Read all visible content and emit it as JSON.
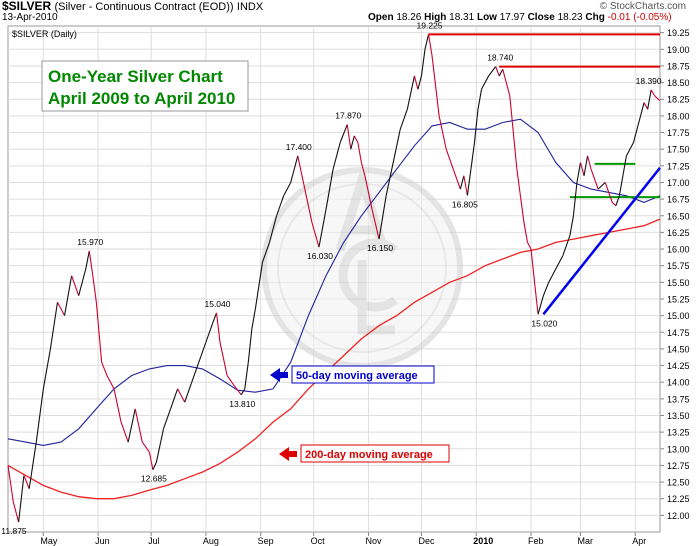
{
  "header": {
    "symbol": "$SILVER",
    "description": "(Silver - Continuous Contract (EOD))",
    "exchange": "INDX",
    "date": "13-Apr-2010",
    "watermark": "© StockCharts.com",
    "ohlc": {
      "open_label": "Open",
      "open": "18.26",
      "high_label": "High",
      "high": "18.31",
      "low_label": "Low",
      "low": "17.97",
      "close_label": "Close",
      "close": "18.23",
      "chg_label": "Chg",
      "chg": "-0.01 (-0.05%)"
    }
  },
  "chart_data": {
    "type": "line",
    "ticker_label": "$SILVER (Daily)",
    "title": "One-Year Silver Chart",
    "subtitle": "April 2009 to April 2010",
    "ylim": [
      11.75,
      19.35
    ],
    "yticks": [
      12.0,
      12.25,
      12.5,
      12.75,
      13.0,
      13.25,
      13.5,
      13.75,
      14.0,
      14.25,
      14.5,
      14.75,
      15.0,
      15.25,
      15.5,
      15.75,
      16.0,
      16.25,
      16.5,
      16.75,
      17.0,
      17.25,
      17.5,
      17.75,
      18.0,
      18.25,
      18.5,
      18.75,
      19.0,
      19.25
    ],
    "ytick_labels": [
      "12.00",
      "12.25",
      "12.50",
      "12.75",
      "13.00",
      "13.25",
      "13.50",
      "13.75",
      "14.00",
      "14.25",
      "14.50",
      "14.75",
      "15.00",
      "15.25",
      "15.50",
      "15.75",
      "16.00",
      "16.25",
      "16.50",
      "16.75",
      "17.00",
      "17.25",
      "17.50",
      "17.75",
      "18.00",
      "18.25",
      "18.50",
      "18.75",
      "19.00",
      "19.25"
    ],
    "xlim": [
      0,
      369
    ],
    "month_ticks": [
      {
        "label": "May",
        "day": 20
      },
      {
        "label": "Jun",
        "day": 51
      },
      {
        "label": "Jul",
        "day": 81
      },
      {
        "label": "Aug",
        "day": 112
      },
      {
        "label": "Sep",
        "day": 143
      },
      {
        "label": "Oct",
        "day": 173
      },
      {
        "label": "Nov",
        "day": 204
      },
      {
        "label": "Dec",
        "day": 234
      },
      {
        "label": "2010",
        "day": 265,
        "bold": true
      },
      {
        "label": "Feb",
        "day": 296
      },
      {
        "label": "Mar",
        "day": 324
      },
      {
        "label": "Apr",
        "day": 355
      }
    ],
    "price": {
      "name": "Price",
      "x": [
        0,
        3,
        6,
        9,
        12,
        16,
        20,
        24,
        28,
        32,
        36,
        40,
        44,
        46,
        48,
        50,
        53,
        56,
        60,
        64,
        68,
        72,
        76,
        80,
        82,
        84,
        88,
        92,
        96,
        100,
        104,
        108,
        112,
        116,
        118,
        120,
        124,
        128,
        132,
        134,
        136,
        138,
        140,
        144,
        148,
        152,
        156,
        160,
        164,
        168,
        172,
        176,
        180,
        184,
        188,
        192,
        194,
        196,
        198,
        200,
        202,
        206,
        210,
        214,
        218,
        222,
        226,
        230,
        232,
        234,
        236,
        238,
        240,
        244,
        248,
        252,
        256,
        258,
        260,
        262,
        264,
        266,
        268,
        272,
        276,
        278,
        280,
        284,
        288,
        290,
        292,
        294,
        296,
        298,
        300,
        303,
        306,
        310,
        314,
        318,
        320,
        322,
        324,
        326,
        328,
        330,
        334,
        338,
        342,
        344,
        346,
        348,
        350,
        352,
        354,
        356,
        358,
        360,
        362,
        364,
        366,
        368,
        369
      ],
      "y": [
        12.75,
        12.2,
        11.9,
        12.6,
        12.4,
        13.1,
        13.9,
        14.5,
        15.2,
        15.0,
        15.6,
        15.3,
        15.7,
        15.97,
        15.6,
        15.2,
        14.3,
        14.1,
        13.9,
        13.4,
        13.1,
        13.6,
        13.1,
        12.95,
        12.685,
        12.8,
        13.3,
        13.6,
        13.9,
        13.7,
        14.0,
        14.3,
        14.6,
        14.9,
        15.04,
        14.6,
        14.1,
        13.95,
        13.81,
        13.9,
        14.3,
        14.8,
        15.1,
        15.8,
        16.1,
        16.5,
        16.8,
        17.0,
        17.4,
        16.9,
        16.4,
        16.03,
        16.6,
        17.2,
        17.6,
        17.87,
        17.5,
        17.7,
        17.6,
        17.3,
        17.1,
        16.6,
        16.15,
        16.8,
        17.3,
        17.8,
        18.1,
        18.6,
        18.4,
        18.6,
        19.0,
        19.225,
        18.9,
        18.0,
        17.5,
        17.2,
        16.9,
        17.1,
        16.805,
        17.2,
        17.6,
        18.1,
        18.4,
        18.6,
        18.74,
        18.6,
        18.7,
        18.3,
        17.2,
        16.8,
        16.4,
        16.1,
        16.0,
        15.5,
        15.02,
        15.3,
        15.5,
        15.7,
        15.9,
        16.2,
        16.5,
        17.0,
        17.3,
        17.1,
        17.4,
        17.2,
        16.9,
        17.0,
        16.7,
        16.65,
        16.8,
        17.1,
        17.4,
        17.5,
        17.6,
        17.8,
        18.0,
        18.2,
        18.1,
        18.39,
        18.3,
        18.25,
        18.23
      ]
    },
    "ma50": {
      "name": "50-day moving average",
      "x": [
        0,
        10,
        20,
        30,
        40,
        50,
        60,
        70,
        80,
        90,
        100,
        110,
        120,
        130,
        140,
        150,
        160,
        170,
        180,
        190,
        200,
        210,
        220,
        230,
        240,
        250,
        260,
        270,
        280,
        290,
        300,
        310,
        320,
        330,
        340,
        350,
        360,
        369
      ],
      "y": [
        13.15,
        13.1,
        13.05,
        13.1,
        13.3,
        13.6,
        13.9,
        14.1,
        14.2,
        14.25,
        14.25,
        14.2,
        14.05,
        13.88,
        13.85,
        13.9,
        14.3,
        15.0,
        15.6,
        16.1,
        16.5,
        16.85,
        17.2,
        17.55,
        17.85,
        17.9,
        17.8,
        17.8,
        17.9,
        17.95,
        17.75,
        17.3,
        17.0,
        16.9,
        16.85,
        16.8,
        16.7,
        16.8
      ]
    },
    "ma200": {
      "name": "200-day moving average",
      "x": [
        0,
        10,
        20,
        30,
        40,
        50,
        60,
        70,
        80,
        90,
        100,
        110,
        120,
        130,
        140,
        150,
        160,
        170,
        180,
        190,
        200,
        210,
        220,
        230,
        240,
        250,
        260,
        270,
        280,
        290,
        300,
        310,
        320,
        330,
        340,
        350,
        360,
        369
      ],
      "y": [
        12.75,
        12.6,
        12.45,
        12.35,
        12.28,
        12.25,
        12.25,
        12.3,
        12.38,
        12.45,
        12.55,
        12.65,
        12.78,
        12.95,
        13.15,
        13.4,
        13.6,
        13.9,
        14.15,
        14.4,
        14.65,
        14.85,
        15.0,
        15.2,
        15.35,
        15.5,
        15.6,
        15.75,
        15.85,
        15.95,
        16.0,
        16.1,
        16.15,
        16.2,
        16.25,
        16.3,
        16.35,
        16.45
      ]
    },
    "point_labels": [
      {
        "x": 3,
        "y": 11.9,
        "text": "11.875",
        "pos": "below"
      },
      {
        "x": 46,
        "y": 15.97,
        "text": "15.970",
        "pos": "above"
      },
      {
        "x": 82,
        "y": 12.685,
        "text": "12.685",
        "pos": "below"
      },
      {
        "x": 118,
        "y": 15.04,
        "text": "15.040",
        "pos": "above"
      },
      {
        "x": 132,
        "y": 13.81,
        "text": "13.810",
        "pos": "below"
      },
      {
        "x": 164,
        "y": 17.4,
        "text": "17.400",
        "pos": "above"
      },
      {
        "x": 176,
        "y": 16.03,
        "text": "16.030",
        "pos": "below"
      },
      {
        "x": 192,
        "y": 17.87,
        "text": "17.870",
        "pos": "above"
      },
      {
        "x": 210,
        "y": 16.15,
        "text": "16.150",
        "pos": "below"
      },
      {
        "x": 238,
        "y": 19.225,
        "text": "19.225",
        "pos": "above"
      },
      {
        "x": 258,
        "y": 16.805,
        "text": "16.805",
        "pos": "below"
      },
      {
        "x": 278,
        "y": 18.74,
        "text": "18.740",
        "pos": "above"
      },
      {
        "x": 303,
        "y": 15.02,
        "text": "15.020",
        "pos": "below"
      },
      {
        "x": 362,
        "y": 18.39,
        "text": "18.390",
        "pos": "above"
      }
    ],
    "annotations": {
      "ma50_label": "50-day moving average",
      "ma200_label": "200-day moving average",
      "ma50_color": "#0000cc",
      "ma200_color": "#dd0000"
    },
    "resistance_lines": [
      {
        "y": 19.225,
        "x0": 238,
        "x1": 369,
        "color": "#dd0000"
      },
      {
        "y": 18.74,
        "x0": 278,
        "x1": 369,
        "color": "#dd0000"
      },
      {
        "y": 17.28,
        "x0": 332,
        "x1": 355,
        "color": "#009900"
      },
      {
        "y": 16.78,
        "x0": 318,
        "x1": 369,
        "color": "#009900"
      }
    ],
    "trend_line": {
      "x0": 303,
      "y0": 15.02,
      "x1": 369,
      "y1": 17.22,
      "color": "#0000ee"
    },
    "colors": {
      "up": "#111111",
      "down": "#cc0033",
      "title_text": "#008800",
      "ma50": "#22229a",
      "ma200": "#ee2222"
    }
  }
}
